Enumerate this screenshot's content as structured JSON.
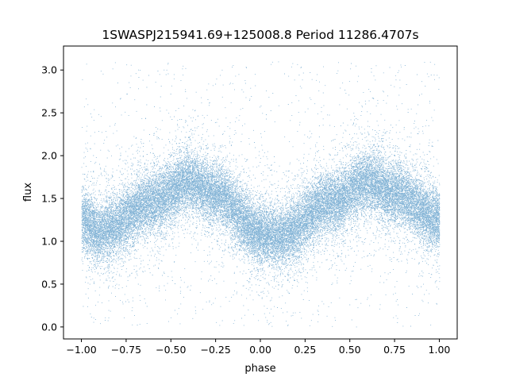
{
  "chart_data": {
    "type": "scatter",
    "title": "1SWASPJ215941.69+125008.8 Period 11286.4707s",
    "xlabel": "phase",
    "ylabel": "flux",
    "xlim": [
      -1.1,
      1.1
    ],
    "ylim": [
      -0.14,
      3.28
    ],
    "x_ticks": [
      -1.0,
      -0.75,
      -0.5,
      -0.25,
      0.0,
      0.25,
      0.5,
      0.75,
      1.0
    ],
    "x_tick_labels": [
      "−1.00",
      "−0.75",
      "−0.50",
      "−0.25",
      "0.00",
      "0.25",
      "0.50",
      "0.75",
      "1.00"
    ],
    "y_ticks": [
      0.0,
      0.5,
      1.0,
      1.5,
      2.0,
      2.5,
      3.0
    ],
    "y_tick_labels": [
      "0.0",
      "0.5",
      "1.0",
      "1.5",
      "2.0",
      "2.5",
      "3.0"
    ],
    "grid": false,
    "legend": "none",
    "colors": {
      "points": "#1f77b4",
      "axes": "#000000",
      "background": "#ffffff"
    },
    "series": [
      {
        "phase_range": [
          -1.0,
          1.0
        ],
        "flux_range": [
          0.0,
          3.1
        ],
        "description_points": [
          {
            "phase": -1.0,
            "flux_center": 1.25
          },
          {
            "phase": -0.9,
            "flux_center": 1.1
          },
          {
            "phase": -0.6,
            "flux_center": 1.45
          },
          {
            "phase": -0.4,
            "flux_center": 1.7
          },
          {
            "phase": -0.25,
            "flux_center": 1.55
          },
          {
            "phase": 0.0,
            "flux_center": 1.1
          },
          {
            "phase": 0.1,
            "flux_center": 1.05
          },
          {
            "phase": 0.4,
            "flux_center": 1.45
          },
          {
            "phase": 0.6,
            "flux_center": 1.7
          },
          {
            "phase": 0.75,
            "flux_center": 1.55
          },
          {
            "phase": 1.0,
            "flux_center": 1.25
          }
        ]
      }
    ]
  }
}
